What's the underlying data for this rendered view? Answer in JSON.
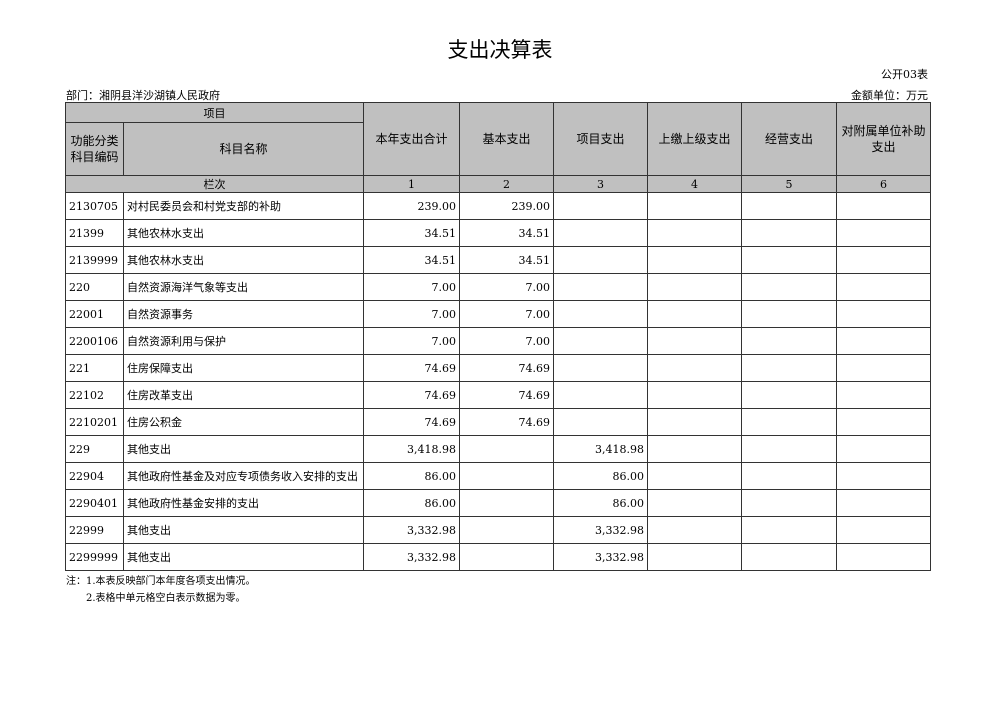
{
  "title": "支出决算表",
  "form_code": "公开03表",
  "department": "部门：湘阴县洋沙湖镇人民政府",
  "unit": "金额单位：万元",
  "header": {
    "item": "项目",
    "code": "功能分类科目编码",
    "name": "科目名称",
    "cols": [
      "本年支出合计",
      "基本支出",
      "项目支出",
      "上缴上级支出",
      "经营支出",
      "对附属单位补助支出"
    ],
    "lanci": "栏次",
    "col_nums": [
      "1",
      "2",
      "3",
      "4",
      "5",
      "6"
    ]
  },
  "rows": [
    {
      "code": "2130705",
      "name": "对村民委员会和村党支部的补助",
      "v": [
        "239.00",
        "239.00",
        "",
        "",
        "",
        ""
      ]
    },
    {
      "code": "21399",
      "name": "其他农林水支出",
      "v": [
        "34.51",
        "34.51",
        "",
        "",
        "",
        ""
      ]
    },
    {
      "code": "2139999",
      "name": "其他农林水支出",
      "v": [
        "34.51",
        "34.51",
        "",
        "",
        "",
        ""
      ]
    },
    {
      "code": "220",
      "name": "自然资源海洋气象等支出",
      "v": [
        "7.00",
        "7.00",
        "",
        "",
        "",
        ""
      ]
    },
    {
      "code": "22001",
      "name": "自然资源事务",
      "v": [
        "7.00",
        "7.00",
        "",
        "",
        "",
        ""
      ]
    },
    {
      "code": "2200106",
      "name": "自然资源利用与保护",
      "v": [
        "7.00",
        "7.00",
        "",
        "",
        "",
        ""
      ]
    },
    {
      "code": "221",
      "name": "住房保障支出",
      "v": [
        "74.69",
        "74.69",
        "",
        "",
        "",
        ""
      ]
    },
    {
      "code": "22102",
      "name": "住房改革支出",
      "v": [
        "74.69",
        "74.69",
        "",
        "",
        "",
        ""
      ]
    },
    {
      "code": "2210201",
      "name": "住房公积金",
      "v": [
        "74.69",
        "74.69",
        "",
        "",
        "",
        ""
      ]
    },
    {
      "code": "229",
      "name": "其他支出",
      "v": [
        "3,418.98",
        "",
        "3,418.98",
        "",
        "",
        ""
      ]
    },
    {
      "code": "22904",
      "name": "其他政府性基金及对应专项债务收入安排的支出",
      "v": [
        "86.00",
        "",
        "86.00",
        "",
        "",
        ""
      ]
    },
    {
      "code": "2290401",
      "name": "其他政府性基金安排的支出",
      "v": [
        "86.00",
        "",
        "86.00",
        "",
        "",
        ""
      ]
    },
    {
      "code": "22999",
      "name": "其他支出",
      "v": [
        "3,332.98",
        "",
        "3,332.98",
        "",
        "",
        ""
      ]
    },
    {
      "code": "2299999",
      "name": "其他支出",
      "v": [
        "3,332.98",
        "",
        "3,332.98",
        "",
        "",
        ""
      ]
    }
  ],
  "notes": [
    "注：1.本表反映部门本年度各项支出情况。",
    "　　2.表格中单元格空白表示数据为零。"
  ]
}
